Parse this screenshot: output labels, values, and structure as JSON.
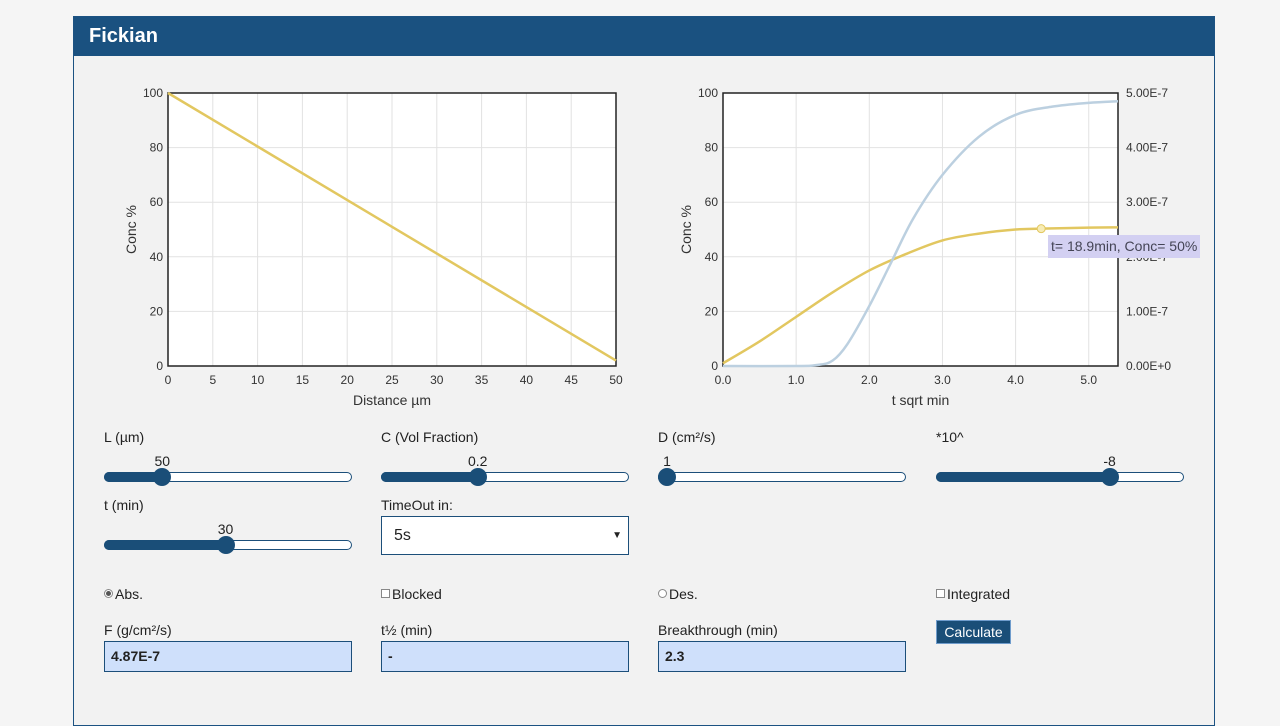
{
  "panel": {
    "title": "Fickian"
  },
  "colors": {
    "header": "#1a5180",
    "accent": "#1a4e78",
    "curve": "#e2c760",
    "curve2": "#bcd0e0",
    "field_bg": "#cfe0fb"
  },
  "chart_data": [
    {
      "type": "line",
      "xlabel": "Distance µm",
      "ylabel": "Conc %",
      "xlim": [
        0,
        50
      ],
      "ylim": [
        0,
        100
      ],
      "x_ticks": [
        "0",
        "5",
        "10",
        "15",
        "20",
        "25",
        "30",
        "35",
        "40",
        "45",
        "50"
      ],
      "y_ticks": [
        "0",
        "20",
        "40",
        "60",
        "80",
        "100"
      ],
      "grid": true,
      "series": [
        {
          "x": [
            0,
            50
          ],
          "y": [
            100,
            2
          ]
        }
      ]
    },
    {
      "type": "line",
      "xlabel": "t sqrt min",
      "ylabel": "Conc %",
      "xlim": [
        0,
        5.4
      ],
      "ylim": [
        0,
        100
      ],
      "y2lim": [
        0,
        5e-07
      ],
      "x_ticks": [
        "0.0",
        "1.0",
        "2.0",
        "3.0",
        "4.0",
        "5.0"
      ],
      "y_ticks": [
        "0",
        "20",
        "40",
        "60",
        "80",
        "100"
      ],
      "y2_ticks": [
        "0.00E+0",
        "1.00E-7",
        "2.00E-7",
        "3.00E-7",
        "4.00E-7",
        "5.00E-7"
      ],
      "grid": true,
      "series": [
        {
          "axis": "left",
          "x": [
            0,
            0.5,
            1.0,
            1.5,
            2.0,
            2.5,
            3.0,
            3.5,
            4.0,
            4.35,
            5.0,
            5.4
          ],
          "y": [
            1,
            9,
            18,
            27,
            35,
            41,
            46,
            48.5,
            50,
            50.3,
            50.7,
            50.8
          ]
        },
        {
          "axis": "right",
          "x": [
            0,
            1.0,
            1.3,
            1.5,
            1.7,
            2.0,
            2.3,
            2.6,
            3.0,
            3.5,
            4.0,
            4.5,
            5.0,
            5.4
          ],
          "y": [
            0,
            0.0,
            2e-09,
            1e-08,
            4e-08,
            1.1e-07,
            1.9e-07,
            2.7e-07,
            3.5e-07,
            4.2e-07,
            4.6e-07,
            4.75e-07,
            4.82e-07,
            4.85e-07
          ]
        }
      ],
      "highlight": {
        "x": 4.35,
        "y": 50.3
      },
      "tooltip": "t= 18.9min, Conc= 50%"
    }
  ],
  "controls": {
    "L": {
      "label": "L (µm)",
      "value": "50",
      "fraction": 0.235
    },
    "C": {
      "label": "C (Vol Fraction)",
      "value": "0.2",
      "fraction": 0.39
    },
    "D": {
      "label": "D (cm²/s)",
      "value": "1",
      "fraction": 0.0
    },
    "exp": {
      "label": "*10^",
      "value": "-8",
      "fraction": 0.7
    },
    "t": {
      "label": "t (min)",
      "value": "30",
      "fraction": 0.49
    },
    "timeout": {
      "label": "TimeOut in:",
      "value": "5s"
    }
  },
  "options": {
    "abs": {
      "label": "Abs.",
      "checked": true
    },
    "blocked": {
      "label": "Blocked",
      "checked": false
    },
    "des": {
      "label": "Des.",
      "checked": false
    },
    "integrated": {
      "label": "Integrated",
      "checked": false
    }
  },
  "outputs": {
    "F": {
      "label": "F (g/cm²/s)",
      "value": "4.87E-7"
    },
    "t_half": {
      "label": "t½ (min)",
      "value": "-"
    },
    "breakthrough": {
      "label": "Breakthrough (min)",
      "value": "2.3"
    }
  },
  "calculate_label": "Calculate"
}
